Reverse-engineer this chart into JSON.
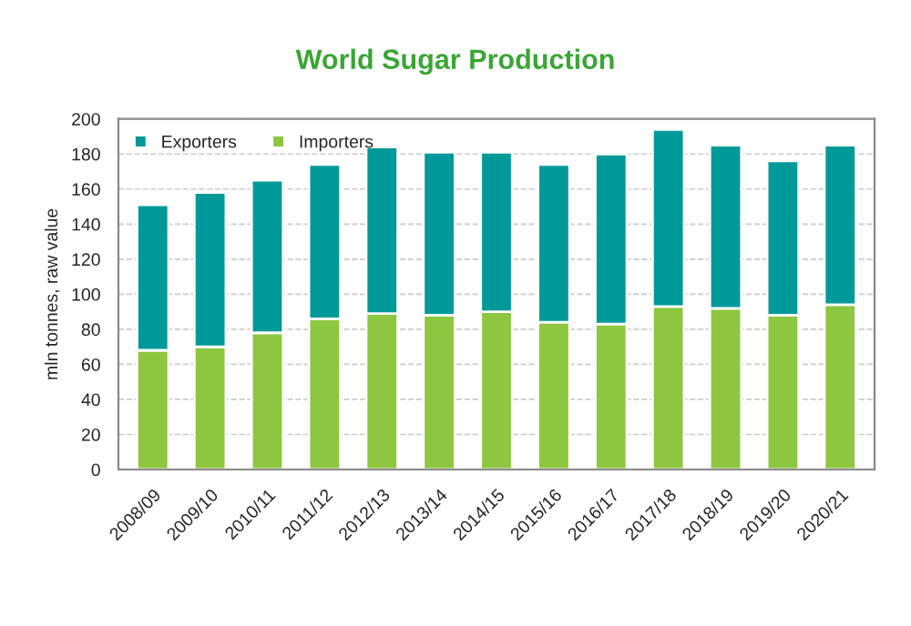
{
  "chart_data": {
    "type": "bar",
    "title": "World Sugar Production",
    "ylabel": "mln tonnes, raw value",
    "categories": [
      "2008/09",
      "2009/10",
      "2010/11",
      "2011/12",
      "2012/13",
      "2013/14",
      "2014/15",
      "2015/16",
      "2016/17",
      "2017/18",
      "2018/19",
      "2019/20",
      "2020/21"
    ],
    "stacked": true,
    "series": [
      {
        "name": "Importers",
        "color": "#8dc63f",
        "values": [
          68,
          70,
          78,
          86,
          89,
          88,
          90,
          84,
          83,
          93,
          92,
          88,
          94
        ]
      },
      {
        "name": "Exporters",
        "color": "#009999",
        "values": [
          83,
          88,
          87,
          88,
          95,
          93,
          91,
          90,
          97,
          101,
          93,
          88,
          91
        ]
      }
    ],
    "ylim": [
      0,
      200
    ],
    "yticks": [
      0,
      20,
      40,
      60,
      80,
      100,
      120,
      140,
      160,
      180,
      200
    ],
    "grid": "y",
    "legend": "top left"
  }
}
